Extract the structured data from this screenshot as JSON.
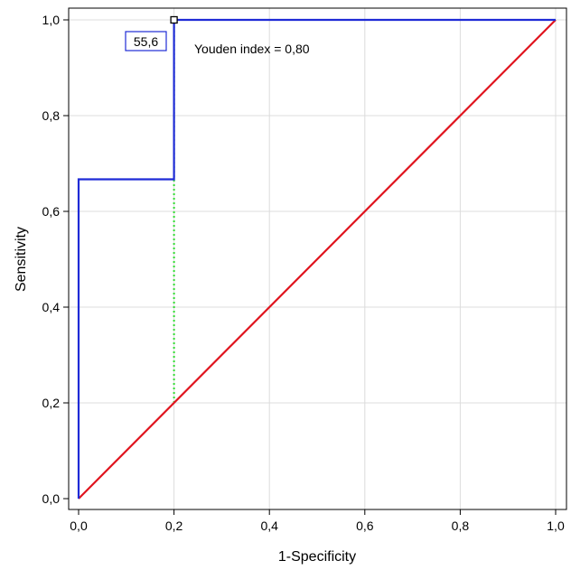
{
  "chart_data": {
    "type": "line",
    "title": "",
    "xlabel": "1-Specificity",
    "ylabel": "Sensitivity",
    "xlim": [
      0,
      1
    ],
    "ylim": [
      0,
      1
    ],
    "grid": true,
    "x_ticks": [
      "0,0",
      "0,2",
      "0,4",
      "0,6",
      "0,8",
      "1,0"
    ],
    "y_ticks": [
      "0,0",
      "0,2",
      "0,4",
      "0,6",
      "0,8",
      "1,0"
    ],
    "series": [
      {
        "color": "#1f2bd6",
        "style": "solid",
        "points": [
          [
            0.0,
            0.0
          ],
          [
            0.0,
            0.667
          ],
          [
            0.2,
            0.667
          ],
          [
            0.2,
            1.0
          ],
          [
            1.0,
            1.0
          ]
        ]
      },
      {
        "color": "#e0141e",
        "style": "solid",
        "points": [
          [
            0.0,
            0.0
          ],
          [
            1.0,
            1.0
          ]
        ]
      }
    ],
    "youden_line": {
      "x": 0.2,
      "y_from": 0.2,
      "y_to": 1.0,
      "color": "#33dd33",
      "style": "dotted"
    },
    "cutoff_point": {
      "x": 0.2,
      "y": 1.0,
      "label": "55,6"
    },
    "annotation": "Youden index = 0,80"
  }
}
